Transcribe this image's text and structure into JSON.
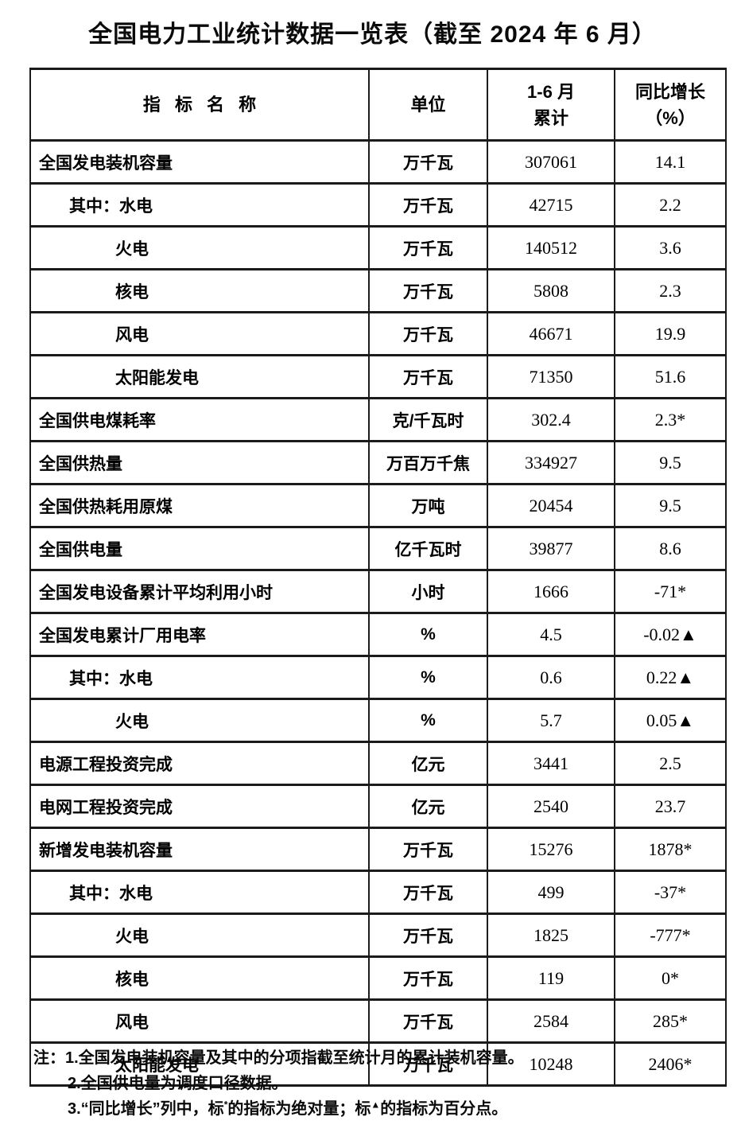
{
  "title": "全国电力工业统计数据一览表（截至 2024 年 6 月）",
  "table": {
    "columns": {
      "indicator": "指 标 名 称",
      "unit": "单位",
      "period_line1": "1-6 月",
      "period_line2": "累计",
      "growth_line1": "同比增长",
      "growth_line2": "（%）"
    },
    "rows": [
      {
        "indicator": "全国发电装机容量",
        "indent": 0,
        "unit": "万千瓦",
        "value": "307061",
        "growth": "14.1"
      },
      {
        "indicator": "其中：水电",
        "indent": 1,
        "unit": "万千瓦",
        "value": "42715",
        "growth": "2.2"
      },
      {
        "indicator": "火电",
        "indent": 2,
        "unit": "万千瓦",
        "value": "140512",
        "growth": "3.6"
      },
      {
        "indicator": "核电",
        "indent": 2,
        "unit": "万千瓦",
        "value": "5808",
        "growth": "2.3"
      },
      {
        "indicator": "风电",
        "indent": 2,
        "unit": "万千瓦",
        "value": "46671",
        "growth": "19.9"
      },
      {
        "indicator": "太阳能发电",
        "indent": 2,
        "unit": "万千瓦",
        "value": "71350",
        "growth": "51.6"
      },
      {
        "indicator": "全国供电煤耗率",
        "indent": 0,
        "unit": "克/千瓦时",
        "value": "302.4",
        "growth": "2.3*"
      },
      {
        "indicator": "全国供热量",
        "indent": 0,
        "unit": "万百万千焦",
        "value": "334927",
        "growth": "9.5"
      },
      {
        "indicator": "全国供热耗用原煤",
        "indent": 0,
        "unit": "万吨",
        "value": "20454",
        "growth": "9.5"
      },
      {
        "indicator": "全国供电量",
        "indent": 0,
        "unit": "亿千瓦时",
        "value": "39877",
        "growth": "8.6"
      },
      {
        "indicator": "全国发电设备累计平均利用小时",
        "indent": 0,
        "unit": "小时",
        "value": "1666",
        "growth": "-71*"
      },
      {
        "indicator": "全国发电累计厂用电率",
        "indent": 0,
        "unit": "%",
        "value": "4.5",
        "growth": "-0.02▲"
      },
      {
        "indicator": "其中：水电",
        "indent": 1,
        "unit": "%",
        "value": "0.6",
        "growth": "0.22▲"
      },
      {
        "indicator": "火电",
        "indent": 2,
        "unit": "%",
        "value": "5.7",
        "growth": "0.05▲"
      },
      {
        "indicator": "电源工程投资完成",
        "indent": 0,
        "unit": "亿元",
        "value": "3441",
        "growth": "2.5"
      },
      {
        "indicator": "电网工程投资完成",
        "indent": 0,
        "unit": "亿元",
        "value": "2540",
        "growth": "23.7"
      },
      {
        "indicator": "新增发电装机容量",
        "indent": 0,
        "unit": "万千瓦",
        "value": "15276",
        "growth": "1878*"
      },
      {
        "indicator": "其中：水电",
        "indent": 1,
        "unit": "万千瓦",
        "value": "499",
        "growth": "-37*"
      },
      {
        "indicator": "火电",
        "indent": 2,
        "unit": "万千瓦",
        "value": "1825",
        "growth": "-777*"
      },
      {
        "indicator": "核电",
        "indent": 2,
        "unit": "万千瓦",
        "value": "119",
        "growth": "0*"
      },
      {
        "indicator": "风电",
        "indent": 2,
        "unit": "万千瓦",
        "value": "2584",
        "growth": "285*"
      },
      {
        "indicator": "太阳能发电",
        "indent": 2,
        "unit": "万千瓦",
        "value": "10248",
        "growth": "2406*"
      }
    ]
  },
  "notes": {
    "note1": "注：1.全国发电装机容量及其中的分项指截至统计月的累计装机容量。",
    "note2": "2.全国供电量为调度口径数据。",
    "note3": {
      "part1": "3.“同比增长”列中，标",
      "sup1": "*",
      "part2": "的指标为绝对量；标",
      "sup2": "▲",
      "part3": "的指标为百分点。"
    }
  }
}
